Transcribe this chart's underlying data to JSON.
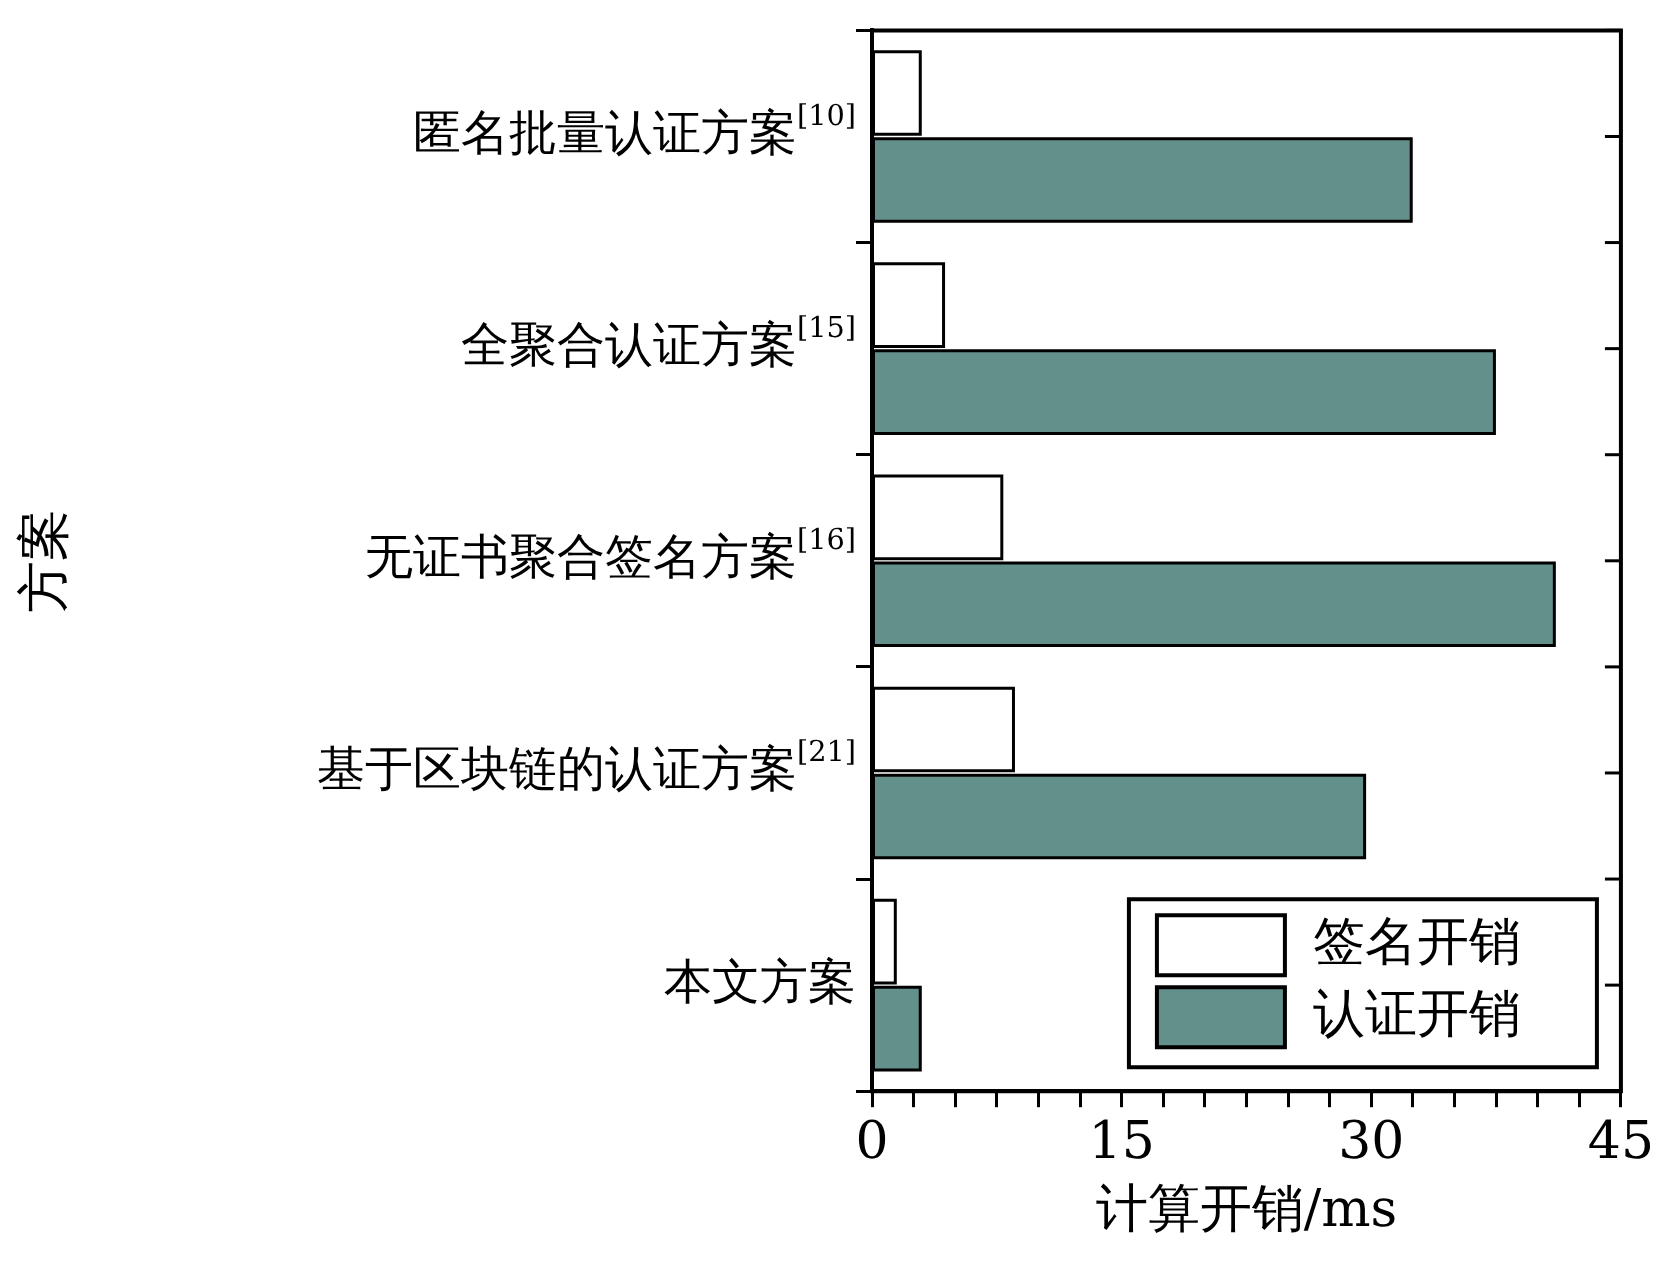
{
  "chart_data": {
    "type": "bar",
    "orientation": "horizontal",
    "xlabel": "计算开销/ms",
    "ylabel": "方案",
    "categories": [
      "匿名批量认证方案$^{[10]}$",
      "全聚合认证方案$^{[15]}$",
      "无证书聚合签名方案$^{[16]}$",
      "基于区块链的认证方案$^{[21]}$",
      "本文方案"
    ],
    "series": [
      {
        "name": "签名开销",
        "color": "#ffffff",
        "values": [
          2.9,
          4.3,
          7.8,
          8.5,
          1.4
        ]
      },
      {
        "name": "认证开销",
        "color": "#64908c",
        "values": [
          32.4,
          37.4,
          41.0,
          29.6,
          2.9
        ]
      }
    ],
    "xlim": [
      0,
      45
    ],
    "xticks": [
      0,
      {
        "value": 2.5,
        "label": null
      },
      {
        "value": 5,
        "label": null
      },
      {
        "value": 7.5,
        "label": null
      },
      {
        "value": 10,
        "label": null
      },
      {
        "value": 12.5,
        "label": null
      },
      15,
      {
        "value": 17.5,
        "label": null
      },
      {
        "value": 20,
        "label": null
      },
      {
        "value": 22.5,
        "label": null
      },
      {
        "value": 25,
        "label": null
      },
      {
        "value": 27.5,
        "label": null
      },
      30,
      {
        "value": 32.5,
        "label": null
      },
      {
        "value": 35,
        "label": null
      },
      {
        "value": 37.5,
        "label": null
      },
      {
        "value": 40,
        "label": null
      },
      {
        "value": 42.5,
        "label": null
      },
      45
    ],
    "grid": false,
    "legend": "bottom right"
  }
}
